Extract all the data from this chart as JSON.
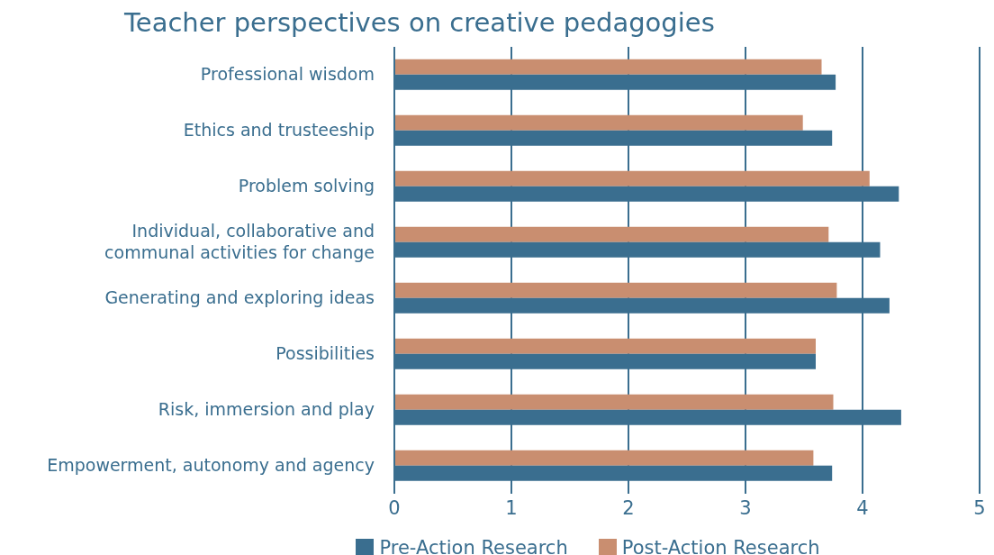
{
  "chart_data": {
    "type": "bar",
    "orientation": "horizontal",
    "title": "Teacher perspectives on creative pedagogies",
    "categories": [
      "Professional wisdom",
      "Ethics and trusteeship",
      "Problem solving",
      "Individual, collaborative and communal activities for change",
      "Generating and exploring ideas",
      "Possibilities",
      "Risk, immersion and play",
      "Empowerment, autonomy and agency"
    ],
    "series": [
      {
        "name": "Pre-Action Research",
        "color": "#3a6e8f",
        "values": [
          3.77,
          3.74,
          4.31,
          4.15,
          4.23,
          3.6,
          4.33,
          3.74
        ]
      },
      {
        "name": "Post-Action Research",
        "color": "#c98e70",
        "values": [
          3.65,
          3.49,
          4.06,
          3.71,
          3.78,
          3.6,
          3.75,
          3.58
        ]
      }
    ],
    "xlim": [
      0,
      5
    ],
    "xticks": [
      0,
      1,
      2,
      3,
      4,
      5
    ],
    "grid": "x",
    "legend": "bottom"
  }
}
